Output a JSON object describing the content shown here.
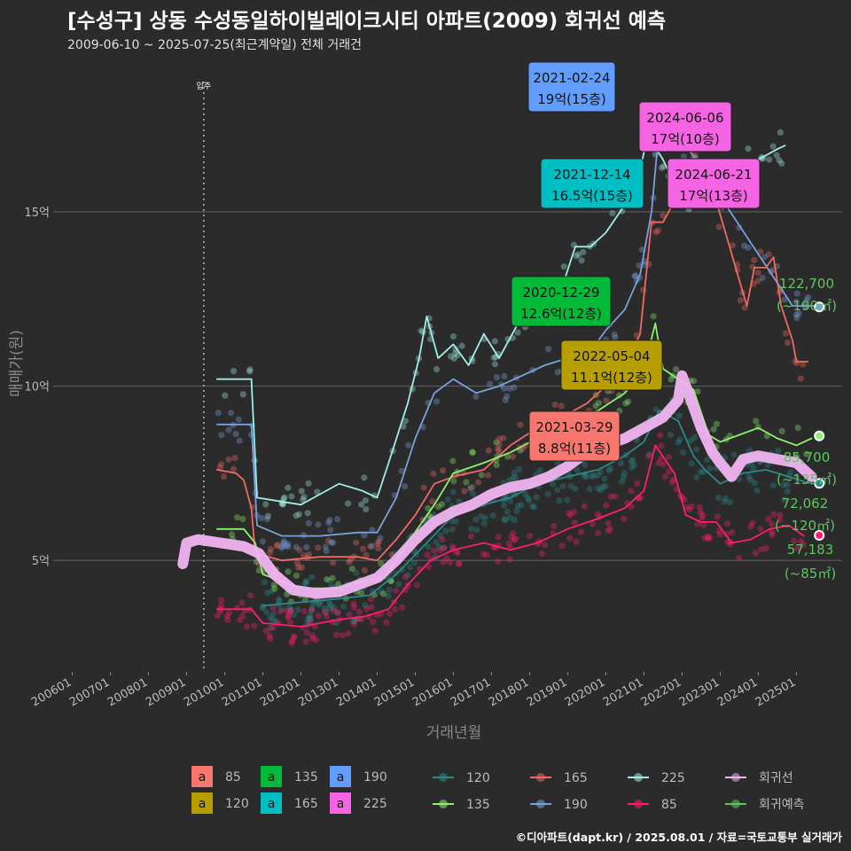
{
  "header": {
    "title": "[수성구] 상동 수성동일하이빌레이크시티 아파트(2009) 회귀선 예측",
    "subtitle": "2009-06-10 ~ 2025-07-25(최근계약일) 전체 거래건"
  },
  "footer": "©디아파트(dapt.kr) / 2025.08.01 / 자료=국토교통부 실거래가",
  "chart_data": {
    "type": "line",
    "xlabel": "거래년월",
    "ylabel": "매매가(원)",
    "x_ticks": [
      "200601",
      "200701",
      "200801",
      "200901",
      "201001",
      "201101",
      "201201",
      "201301",
      "201401",
      "201501",
      "201601",
      "201701",
      "201801",
      "201901",
      "202001",
      "202101",
      "202201",
      "202301",
      "202401",
      "202501"
    ],
    "y_ticks": [
      {
        "value": 5,
        "label": "5억"
      },
      {
        "value": 10,
        "label": "10억"
      },
      {
        "value": 15,
        "label": "15억"
      }
    ],
    "xlim": [
      2005.5,
      2026.2
    ],
    "ylim": [
      1.8,
      19.5
    ],
    "grid": true,
    "vline": {
      "x": 2009.45,
      "label": "입주"
    },
    "colors": {
      "85": "#ff1e6e",
      "120": "#2a8a8a",
      "135": "#8cf06e",
      "165": "#f06a64",
      "190": "#7aa0dc",
      "225": "#a0eee6",
      "regression": "#f0b4f0",
      "forecast": "#5ac85a"
    },
    "series": [
      {
        "key": "225",
        "points": [
          [
            2009.8,
            10.2
          ],
          [
            2010.7,
            10.2
          ],
          [
            2010.85,
            6.8
          ],
          [
            2012.0,
            6.6
          ],
          [
            2012.5,
            6.9
          ],
          [
            2013.0,
            7.2
          ],
          [
            2013.6,
            7.0
          ],
          [
            2014.0,
            6.8
          ],
          [
            2014.3,
            7.8
          ],
          [
            2014.8,
            9.5
          ],
          [
            2015.1,
            10.8
          ],
          [
            2015.3,
            12.0
          ],
          [
            2015.6,
            10.8
          ],
          [
            2016.0,
            11.2
          ],
          [
            2016.4,
            10.6
          ],
          [
            2016.8,
            11.5
          ],
          [
            2017.2,
            10.8
          ],
          [
            2017.6,
            11.6
          ],
          [
            2018.0,
            12.4
          ],
          [
            2018.4,
            12.6
          ],
          [
            2018.9,
            13.0
          ],
          [
            2019.2,
            14.0
          ],
          [
            2019.6,
            14.0
          ],
          [
            2020.0,
            14.4
          ],
          [
            2020.5,
            15.2
          ],
          [
            2020.9,
            16.2
          ],
          [
            2021.1,
            17.2
          ],
          [
            2021.5,
            16.5
          ],
          [
            2021.8,
            15.8
          ],
          [
            2022.0,
            15.3
          ],
          [
            2024.5,
            16.8
          ],
          [
            2024.7,
            16.9
          ]
        ]
      },
      {
        "key": "190",
        "points": [
          [
            2009.8,
            8.9
          ],
          [
            2010.7,
            8.9
          ],
          [
            2010.85,
            6.0
          ],
          [
            2011.5,
            5.7
          ],
          [
            2012.5,
            5.7
          ],
          [
            2013.5,
            5.8
          ],
          [
            2014.0,
            5.8
          ],
          [
            2014.5,
            6.8
          ],
          [
            2015.0,
            8.5
          ],
          [
            2015.5,
            9.8
          ],
          [
            2016.0,
            10.2
          ],
          [
            2016.6,
            9.8
          ],
          [
            2017.2,
            10.0
          ],
          [
            2017.8,
            10.3
          ],
          [
            2018.4,
            10.6
          ],
          [
            2019.0,
            10.8
          ],
          [
            2019.6,
            11.0
          ],
          [
            2020.0,
            11.6
          ],
          [
            2020.5,
            12.2
          ],
          [
            2020.9,
            13.2
          ],
          [
            2021.2,
            15.0
          ],
          [
            2021.45,
            18.0
          ],
          [
            2024.9,
            12.3
          ],
          [
            2025.5,
            12.3
          ]
        ]
      },
      {
        "key": "165",
        "points": [
          [
            2009.8,
            7.6
          ],
          [
            2010.3,
            7.5
          ],
          [
            2010.5,
            7.3
          ],
          [
            2010.7,
            6.5
          ],
          [
            2010.8,
            5.2
          ],
          [
            2011.5,
            5.0
          ],
          [
            2012.5,
            5.1
          ],
          [
            2013.5,
            5.1
          ],
          [
            2014.0,
            5.0
          ],
          [
            2014.5,
            5.6
          ],
          [
            2015.0,
            6.3
          ],
          [
            2015.5,
            7.2
          ],
          [
            2016.0,
            7.4
          ],
          [
            2016.8,
            7.6
          ],
          [
            2017.5,
            8.3
          ],
          [
            2018.2,
            8.8
          ],
          [
            2019.0,
            9.2
          ],
          [
            2019.5,
            9.5
          ],
          [
            2020.0,
            10.0
          ],
          [
            2020.5,
            10.5
          ],
          [
            2020.9,
            11.5
          ],
          [
            2021.2,
            14.7
          ],
          [
            2021.5,
            14.7
          ],
          [
            2022.4,
            16.5
          ],
          [
            2022.6,
            15.3
          ],
          [
            2022.9,
            15.3
          ],
          [
            2023.7,
            12.3
          ],
          [
            2023.9,
            13.4
          ],
          [
            2024.2,
            13.4
          ],
          [
            2024.4,
            13.7
          ],
          [
            2024.6,
            12.3
          ],
          [
            2024.9,
            11.3
          ],
          [
            2025.0,
            10.7
          ],
          [
            2025.3,
            10.7
          ]
        ]
      },
      {
        "key": "135",
        "points": [
          [
            2009.8,
            5.9
          ],
          [
            2010.5,
            5.9
          ],
          [
            2010.8,
            5.5
          ],
          [
            2011.0,
            4.6
          ],
          [
            2012.0,
            4.2
          ],
          [
            2013.0,
            4.2
          ],
          [
            2013.6,
            4.4
          ],
          [
            2014.2,
            4.5
          ],
          [
            2014.8,
            5.5
          ],
          [
            2015.5,
            6.6
          ],
          [
            2016.0,
            7.5
          ],
          [
            2016.8,
            7.8
          ],
          [
            2017.5,
            8.1
          ],
          [
            2018.2,
            8.5
          ],
          [
            2019.0,
            9.0
          ],
          [
            2019.8,
            9.3
          ],
          [
            2020.5,
            9.8
          ],
          [
            2021.0,
            10.5
          ],
          [
            2021.3,
            11.8
          ],
          [
            2021.5,
            10.5
          ],
          [
            2021.9,
            10.2
          ],
          [
            2022.3,
            9.9
          ],
          [
            2022.7,
            8.6
          ],
          [
            2023.0,
            8.4
          ],
          [
            2023.5,
            8.6
          ],
          [
            2024.0,
            8.8
          ],
          [
            2024.5,
            8.5
          ],
          [
            2025.0,
            8.3
          ],
          [
            2025.4,
            8.5
          ]
        ]
      },
      {
        "key": "120",
        "points": [
          [
            2011.0,
            3.7
          ],
          [
            2012.0,
            3.8
          ],
          [
            2013.0,
            3.9
          ],
          [
            2013.8,
            4.0
          ],
          [
            2014.5,
            4.6
          ],
          [
            2015.3,
            5.5
          ],
          [
            2016.0,
            6.3
          ],
          [
            2016.8,
            6.6
          ],
          [
            2017.5,
            6.8
          ],
          [
            2018.2,
            7.2
          ],
          [
            2019.0,
            7.4
          ],
          [
            2019.8,
            7.6
          ],
          [
            2020.5,
            8.0
          ],
          [
            2021.0,
            8.4
          ],
          [
            2021.4,
            9.3
          ],
          [
            2021.9,
            9.0
          ],
          [
            2022.3,
            8.0
          ],
          [
            2022.6,
            7.6
          ],
          [
            2023.0,
            7.2
          ],
          [
            2023.6,
            7.5
          ],
          [
            2024.2,
            7.6
          ],
          [
            2024.8,
            7.4
          ],
          [
            2025.4,
            7.2
          ]
        ]
      },
      {
        "key": "85",
        "points": [
          [
            2009.8,
            3.6
          ],
          [
            2010.7,
            3.6
          ],
          [
            2011.0,
            3.2
          ],
          [
            2012.0,
            3.1
          ],
          [
            2013.0,
            3.3
          ],
          [
            2013.7,
            3.4
          ],
          [
            2014.3,
            3.6
          ],
          [
            2014.8,
            4.3
          ],
          [
            2015.4,
            5.0
          ],
          [
            2016.0,
            5.3
          ],
          [
            2016.8,
            5.5
          ],
          [
            2017.5,
            5.3
          ],
          [
            2018.2,
            5.5
          ],
          [
            2019.0,
            5.9
          ],
          [
            2019.8,
            6.2
          ],
          [
            2020.5,
            6.5
          ],
          [
            2021.0,
            7.0
          ],
          [
            2021.3,
            8.3
          ],
          [
            2021.8,
            7.5
          ],
          [
            2022.1,
            6.3
          ],
          [
            2022.5,
            6.1
          ],
          [
            2022.9,
            6.1
          ],
          [
            2023.3,
            5.5
          ],
          [
            2023.8,
            5.6
          ],
          [
            2024.3,
            5.9
          ],
          [
            2024.8,
            6.0
          ],
          [
            2025.2,
            5.7
          ]
        ]
      },
      {
        "key": "regression",
        "points": [
          [
            2008.9,
            4.9
          ],
          [
            2009.0,
            5.5
          ],
          [
            2009.3,
            5.6
          ],
          [
            2009.9,
            5.5
          ],
          [
            2010.5,
            5.4
          ],
          [
            2010.9,
            5.2
          ],
          [
            2011.3,
            4.6
          ],
          [
            2011.8,
            4.15
          ],
          [
            2012.4,
            4.05
          ],
          [
            2013.0,
            4.1
          ],
          [
            2013.5,
            4.3
          ],
          [
            2014.0,
            4.5
          ],
          [
            2014.5,
            5.0
          ],
          [
            2015.0,
            5.6
          ],
          [
            2015.5,
            6.1
          ],
          [
            2016.0,
            6.4
          ],
          [
            2016.5,
            6.6
          ],
          [
            2017.0,
            6.9
          ],
          [
            2017.5,
            7.1
          ],
          [
            2018.0,
            7.2
          ],
          [
            2018.5,
            7.4
          ],
          [
            2019.0,
            7.7
          ],
          [
            2019.5,
            8.1
          ],
          [
            2020.0,
            8.3
          ],
          [
            2020.5,
            8.5
          ],
          [
            2021.0,
            8.8
          ],
          [
            2021.5,
            9.1
          ],
          [
            2021.9,
            9.6
          ],
          [
            2022.0,
            10.3
          ],
          [
            2022.2,
            9.7
          ],
          [
            2022.5,
            8.8
          ],
          [
            2022.8,
            8.1
          ],
          [
            2023.0,
            7.8
          ],
          [
            2023.3,
            7.4
          ],
          [
            2023.6,
            7.9
          ],
          [
            2024.0,
            8.0
          ],
          [
            2024.5,
            7.9
          ],
          [
            2025.0,
            7.8
          ],
          [
            2025.2,
            7.6
          ],
          [
            2025.4,
            7.4
          ]
        ]
      }
    ],
    "forecasts": [
      {
        "key": "190",
        "y": 12.27,
        "value": "122,700",
        "area": "(~190㎡)"
      },
      {
        "key": "135",
        "y": 8.57,
        "value": "85,700",
        "area": "(~135㎡)"
      },
      {
        "key": "120",
        "y": 7.21,
        "value": "72,062",
        "area": "(~120㎡)"
      },
      {
        "key": "85",
        "y": 5.72,
        "value": "57,183",
        "area": "(~85㎡)"
      }
    ],
    "annotations": [
      {
        "date": "2021-02-24",
        "price": "19억(15층)",
        "key": "190"
      },
      {
        "date": "2024-06-06",
        "price": "17억(10층)",
        "key": "225"
      },
      {
        "date": "2021-12-14",
        "price": "16.5억(15층)",
        "key": "165"
      },
      {
        "date": "2024-06-21",
        "price": "17억(13층)",
        "key": "225"
      },
      {
        "date": "2020-12-29",
        "price": "12.6억(12층)",
        "key": "135"
      },
      {
        "date": "2022-05-04",
        "price": "11.1억(12층)",
        "key": "120"
      },
      {
        "date": "2021-03-29",
        "price": "8.8억(11층)",
        "key": "85"
      }
    ],
    "legend_fill": {
      "label_letter": "a",
      "items": [
        {
          "label": "85",
          "color": "#f8766d"
        },
        {
          "label": "120",
          "color": "#b79f00"
        },
        {
          "label": "135",
          "color": "#00ba38"
        },
        {
          "label": "165",
          "color": "#00bfc4"
        },
        {
          "label": "190",
          "color": "#619cff"
        },
        {
          "label": "225",
          "color": "#f564e3"
        }
      ]
    },
    "legend_line": {
      "items": [
        {
          "label": "120",
          "key": "120"
        },
        {
          "label": "135",
          "key": "135"
        },
        {
          "label": "165",
          "key": "165"
        },
        {
          "label": "190",
          "key": "190"
        },
        {
          "label": "225",
          "key": "225"
        },
        {
          "label": "85",
          "key": "85"
        },
        {
          "label": "회귀선",
          "key": "regression"
        },
        {
          "label": "회귀예측",
          "key": "forecast"
        }
      ]
    }
  }
}
